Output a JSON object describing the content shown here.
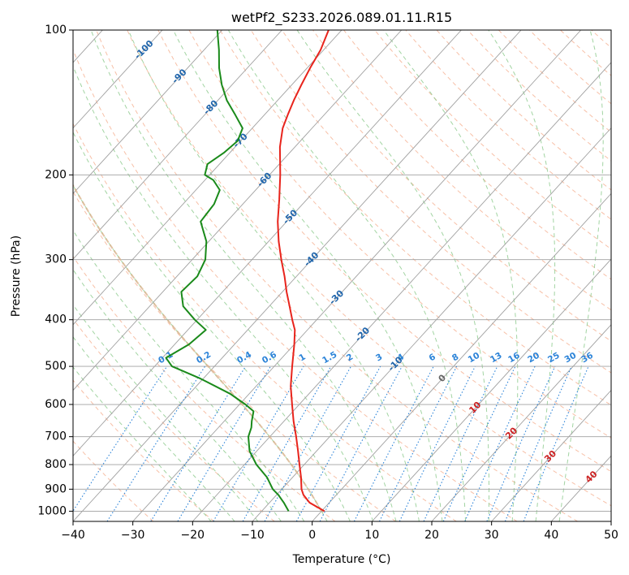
{
  "chart_data": {
    "type": "skew-t",
    "title": "wetPf2_S233.2026.089.01.11.R15",
    "xlabel": "Temperature (°C)",
    "ylabel": "Pressure (hPa)",
    "xlim": [
      -40,
      50
    ],
    "ylim_hpa": [
      1050,
      100
    ],
    "log_pressure_axis": true,
    "x_ticks": [
      -40,
      -30,
      -20,
      -10,
      0,
      10,
      20,
      30,
      40,
      50
    ],
    "x_tick_labels": [
      "−40",
      "−30",
      "−20",
      "−10",
      "0",
      "10",
      "20",
      "30",
      "40",
      "50"
    ],
    "y_ticks": [
      100,
      200,
      300,
      400,
      500,
      600,
      700,
      800,
      900,
      1000
    ],
    "y_tick_labels": [
      "100",
      "200",
      "300",
      "400",
      "500",
      "600",
      "700",
      "800",
      "900",
      "1000"
    ],
    "grid": true,
    "colors": {
      "temperature": "#e8241c",
      "dewpoint": "#1a8a1a",
      "isotherm": "#a0a0a0",
      "dry_adiabat": "#f4a582",
      "moist_adiabat": "#8bc98b",
      "mixing_ratio": "#2b83d8",
      "label_blue": "#2166ac",
      "label_red": "#cc2222",
      "label_gray": "#666666",
      "wetbulb_zero": "#d9b38c"
    },
    "series": [
      {
        "name": "Temperature",
        "pressure_hpa": [
          1000,
          960,
          925,
          900,
          850,
          800,
          750,
          700,
          650,
          600,
          550,
          500,
          450,
          420,
          400,
          375,
          350,
          325,
          300,
          275,
          250,
          225,
          200,
          175,
          160,
          150,
          140,
          130,
          120,
          110,
          100
        ],
        "temperature_c": [
          0.5,
          -3.3,
          -5.5,
          -6.7,
          -8.6,
          -10.8,
          -13.1,
          -15.6,
          -18.4,
          -21.2,
          -24.2,
          -27.0,
          -30.0,
          -32.1,
          -34.1,
          -36.6,
          -39.3,
          -42.0,
          -45.1,
          -48.3,
          -51.5,
          -54.6,
          -58.2,
          -62.5,
          -64.9,
          -66.1,
          -67.3,
          -68.4,
          -69.5,
          -70.5,
          -72.2
        ]
      },
      {
        "name": "Dewpoint",
        "pressure_hpa": [
          1000,
          960,
          925,
          900,
          850,
          800,
          750,
          700,
          670,
          650,
          620,
          600,
          570,
          530,
          500,
          480,
          450,
          420,
          400,
          375,
          350,
          325,
          300,
          275,
          250,
          230,
          215,
          205,
          200,
          190,
          180,
          170,
          160,
          150,
          140,
          130,
          120,
          110,
          100
        ],
        "temperature_c": [
          -5.5,
          -7.6,
          -9.7,
          -11.5,
          -14.3,
          -18.0,
          -21.2,
          -23.6,
          -24.5,
          -25.4,
          -26.6,
          -29.0,
          -33.2,
          -40.5,
          -47.1,
          -49.4,
          -47.6,
          -47.0,
          -50.4,
          -54.4,
          -56.9,
          -56.6,
          -57.8,
          -60.4,
          -64.4,
          -64.8,
          -66.0,
          -68.6,
          -70.8,
          -72.0,
          -71.0,
          -70.5,
          -71.6,
          -74.9,
          -78.5,
          -81.7,
          -84.7,
          -87.5,
          -90.8
        ]
      }
    ],
    "isotherm_labels": [
      "-100",
      "-90",
      "-80",
      "-70",
      "-60",
      "-50",
      "-40",
      "-30",
      "-20",
      "-10"
    ],
    "mixing_ratio_labels": [
      "0.1",
      "0.2",
      "0.4",
      "0.6",
      "1",
      "1.5",
      "2",
      "3",
      "4",
      "6",
      "8",
      "10",
      "13",
      "16",
      "20",
      "25",
      "30",
      "36"
    ],
    "wetbulb_labels": [
      "0",
      "10",
      "20",
      "30",
      "40"
    ]
  }
}
